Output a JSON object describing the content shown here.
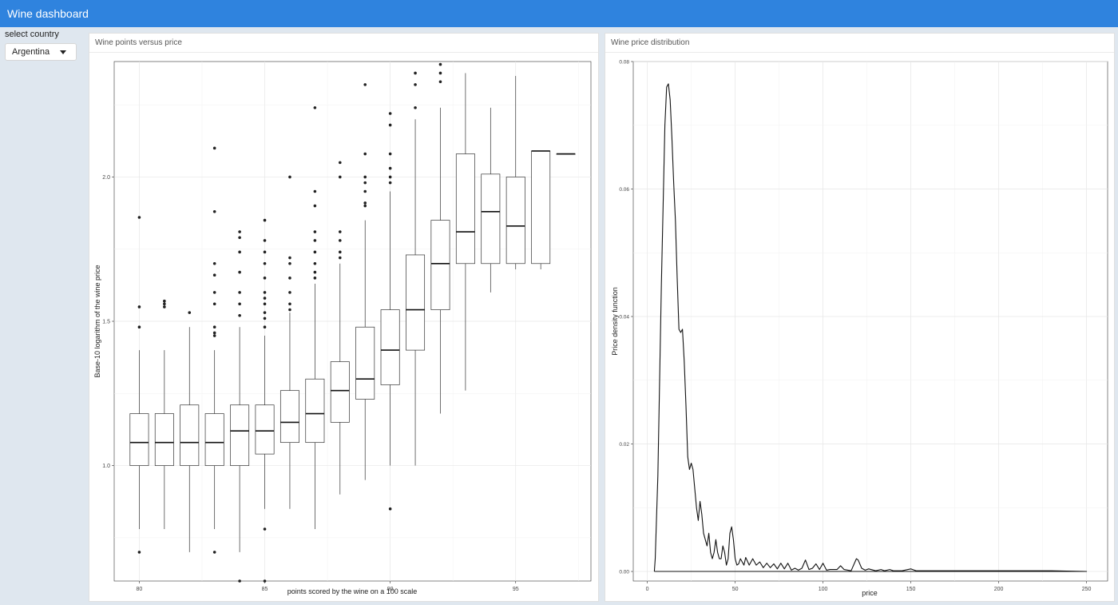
{
  "header": {
    "title": "Wine dashboard"
  },
  "sidebar": {
    "select_label": "select country",
    "selected_country": "Argentina"
  },
  "panels": {
    "boxplot_title": "Wine points versus price",
    "density_title": "Wine price distribution"
  },
  "chart_data": [
    {
      "type": "boxplot",
      "title": "",
      "xlabel": "points scored by the wine on a 100 scale",
      "ylabel": "Base-10 logarithm of the wine price",
      "xlim": [
        79,
        98
      ],
      "ylim": [
        0.6,
        2.4
      ],
      "x_ticks": [
        80,
        85,
        90,
        95
      ],
      "y_ticks": [
        1.0,
        1.5,
        2.0
      ],
      "y_tick_labels": [
        "1.0",
        "1.5",
        "2.0"
      ],
      "grid": true,
      "boxes": [
        {
          "x": 80,
          "lo": 0.78,
          "q1": 1.0,
          "med": 1.08,
          "q3": 1.18,
          "hi": 1.4,
          "outliers": [
            0.7,
            1.48,
            1.55,
            1.86
          ]
        },
        {
          "x": 81,
          "lo": 0.78,
          "q1": 1.0,
          "med": 1.08,
          "q3": 1.18,
          "hi": 1.4,
          "outliers": [
            1.55,
            1.56,
            1.57
          ]
        },
        {
          "x": 82,
          "lo": 0.7,
          "q1": 1.0,
          "med": 1.08,
          "q3": 1.21,
          "hi": 1.48,
          "outliers": [
            1.53
          ]
        },
        {
          "x": 83,
          "lo": 0.78,
          "q1": 1.0,
          "med": 1.08,
          "q3": 1.18,
          "hi": 1.4,
          "outliers": [
            0.7,
            1.45,
            1.46,
            1.48,
            1.56,
            1.6,
            1.66,
            1.7,
            1.88,
            2.1
          ]
        },
        {
          "x": 84,
          "lo": 0.7,
          "q1": 1.0,
          "med": 1.12,
          "q3": 1.21,
          "hi": 1.48,
          "outliers": [
            0.6,
            1.52,
            1.56,
            1.6,
            1.67,
            1.74,
            1.79,
            1.81
          ]
        },
        {
          "x": 85,
          "lo": 0.85,
          "q1": 1.04,
          "med": 1.12,
          "q3": 1.21,
          "hi": 1.45,
          "outliers": [
            0.6,
            0.78,
            1.48,
            1.51,
            1.53,
            1.56,
            1.58,
            1.6,
            1.65,
            1.7,
            1.74,
            1.78,
            1.85
          ]
        },
        {
          "x": 86,
          "lo": 0.85,
          "q1": 1.08,
          "med": 1.15,
          "q3": 1.26,
          "hi": 1.53,
          "outliers": [
            1.54,
            1.56,
            1.6,
            1.65,
            1.7,
            1.72,
            2.0
          ]
        },
        {
          "x": 87,
          "lo": 0.78,
          "q1": 1.08,
          "med": 1.18,
          "q3": 1.3,
          "hi": 1.63,
          "outliers": [
            1.65,
            1.67,
            1.7,
            1.74,
            1.78,
            1.81,
            1.9,
            1.95,
            2.24
          ]
        },
        {
          "x": 88,
          "lo": 0.9,
          "q1": 1.15,
          "med": 1.26,
          "q3": 1.36,
          "hi": 1.7,
          "outliers": [
            1.72,
            1.74,
            1.78,
            1.81,
            2.0,
            2.05
          ]
        },
        {
          "x": 89,
          "lo": 0.95,
          "q1": 1.23,
          "med": 1.3,
          "q3": 1.48,
          "hi": 1.85,
          "outliers": [
            1.9,
            1.91,
            1.95,
            1.98,
            2.0,
            2.08,
            2.32
          ]
        },
        {
          "x": 90,
          "lo": 1.0,
          "q1": 1.28,
          "med": 1.4,
          "q3": 1.54,
          "hi": 1.95,
          "outliers": [
            0.85,
            1.98,
            2.0,
            2.03,
            2.08,
            2.18,
            2.22
          ]
        },
        {
          "x": 91,
          "lo": 1.0,
          "q1": 1.4,
          "med": 1.54,
          "q3": 1.73,
          "hi": 2.2,
          "outliers": [
            2.24,
            2.32,
            2.36
          ]
        },
        {
          "x": 92,
          "lo": 1.18,
          "q1": 1.54,
          "med": 1.7,
          "q3": 1.85,
          "hi": 2.24,
          "outliers": [
            2.33,
            2.36,
            2.39
          ]
        },
        {
          "x": 93,
          "lo": 1.26,
          "q1": 1.7,
          "med": 1.81,
          "q3": 2.08,
          "hi": 2.36,
          "outliers": []
        },
        {
          "x": 94,
          "lo": 1.6,
          "q1": 1.7,
          "med": 1.88,
          "q3": 2.01,
          "hi": 2.24,
          "outliers": []
        },
        {
          "x": 95,
          "lo": 1.68,
          "q1": 1.7,
          "med": 1.83,
          "q3": 2.0,
          "hi": 2.35,
          "outliers": []
        },
        {
          "x": 96,
          "lo": 1.68,
          "q1": 1.7,
          "med": 2.09,
          "q3": 2.09,
          "hi": 2.09,
          "outliers": []
        },
        {
          "x": 97,
          "lo": 2.08,
          "q1": 2.08,
          "med": 2.08,
          "q3": 2.08,
          "hi": 2.08,
          "outliers": []
        }
      ]
    },
    {
      "type": "line",
      "title": "",
      "xlabel": "price",
      "ylabel": "Price density function",
      "xlim": [
        -8,
        262
      ],
      "ylim": [
        -0.0015,
        0.08
      ],
      "x_ticks": [
        0,
        50,
        100,
        150,
        200,
        250
      ],
      "y_ticks": [
        0.0,
        0.02,
        0.04,
        0.06,
        0.08
      ],
      "y_tick_labels": [
        "0.00",
        "0.02",
        "0.04",
        "0.06",
        "0.08"
      ],
      "grid": true,
      "series": [
        {
          "x": [
            4,
            4.5,
            6,
            8,
            10,
            11,
            12,
            13,
            14,
            15,
            16,
            17,
            18,
            19,
            20,
            21,
            22,
            23,
            24,
            25,
            26,
            27,
            28,
            29,
            30,
            31,
            32,
            33,
            34,
            35,
            36,
            37,
            38,
            39,
            40,
            41,
            42,
            43,
            44,
            45,
            46,
            47,
            48,
            49,
            50,
            51,
            52,
            53,
            55,
            56,
            58,
            60,
            62,
            64,
            66,
            68,
            70,
            72,
            74,
            76,
            78,
            80,
            82,
            84,
            86,
            88,
            90,
            92,
            94,
            96,
            98,
            100,
            102,
            104,
            108,
            110,
            112,
            116,
            119,
            120,
            122,
            124,
            126,
            130,
            133,
            135,
            138,
            140,
            145,
            150,
            153,
            160,
            170,
            180,
            200,
            215,
            230,
            250
          ],
          "y": [
            0.0,
            0.002,
            0.015,
            0.045,
            0.07,
            0.076,
            0.0765,
            0.074,
            0.068,
            0.061,
            0.055,
            0.046,
            0.038,
            0.0375,
            0.038,
            0.033,
            0.026,
            0.018,
            0.016,
            0.017,
            0.016,
            0.013,
            0.01,
            0.008,
            0.011,
            0.009,
            0.006,
            0.005,
            0.004,
            0.006,
            0.003,
            0.002,
            0.003,
            0.005,
            0.003,
            0.002,
            0.002,
            0.004,
            0.003,
            0.001,
            0.002,
            0.006,
            0.007,
            0.005,
            0.002,
            0.001,
            0.0012,
            0.002,
            0.001,
            0.0022,
            0.001,
            0.002,
            0.001,
            0.0015,
            0.0006,
            0.0013,
            0.0006,
            0.0012,
            0.0004,
            0.0013,
            0.0004,
            0.0013,
            0.0002,
            0.0005,
            0.0002,
            0.0005,
            0.0018,
            0.0003,
            0.0005,
            0.0012,
            0.0003,
            0.0013,
            0.0002,
            0.0003,
            0.0003,
            0.0009,
            0.0003,
            0.0001,
            0.002,
            0.0018,
            0.0005,
            0.0002,
            0.0004,
            0.0001,
            0.0003,
            0.0001,
            0.0003,
            0.0001,
            0.0001,
            0.0004,
            0.0001,
            0.0001,
            0.0001,
            0.0001,
            0.0001,
            0.0001,
            0.0001,
            0.0
          ]
        }
      ]
    }
  ]
}
